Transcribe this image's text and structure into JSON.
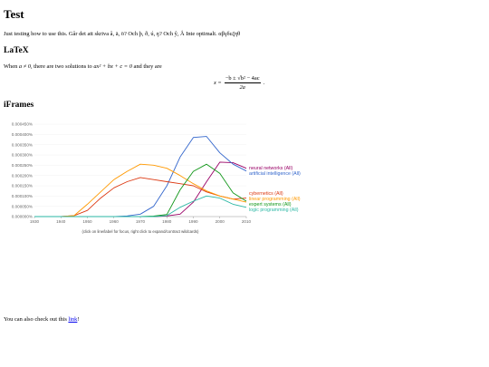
{
  "page": {
    "title": "Test",
    "intro": "Just testing how to use this. Går det att skriva å, ä, ö? Och þ, ð, ú, ŋ? Och ŷ, Å Inte optimalt. αβγδεζηθ",
    "latex_heading": "LaTeX",
    "latex_text": {
      "before": "When ",
      "cond": "a ≠ 0",
      "middle": ", there are two solutions to ",
      "equation": "ax² + bx + c = 0",
      "after": " and they are"
    },
    "display_equation": {
      "lhs": "x =",
      "numerator": "−b ± √b² − 4ac",
      "denominator": "2a",
      "trailing": "."
    },
    "iframes_heading": "iFrames",
    "outro": {
      "before": "You can also check out this ",
      "link": "link",
      "after": "!"
    }
  },
  "chart_data": {
    "type": "line",
    "x": [
      1930,
      1935,
      1940,
      1945,
      1950,
      1955,
      1960,
      1965,
      1970,
      1975,
      1980,
      1985,
      1990,
      1995,
      2000,
      2005,
      2010
    ],
    "xticks": [
      1930,
      1940,
      1950,
      1960,
      1970,
      1980,
      1990,
      2000,
      2010
    ],
    "yticks": [
      "0.000000%",
      "0.000050%",
      "0.000100%",
      "0.000150%",
      "0.000200%",
      "0.000250%",
      "0.000300%",
      "0.000350%",
      "0.000400%",
      "0.000450%"
    ],
    "ylim": [
      0,
      0.00045
    ],
    "xlim": [
      1930,
      2010
    ],
    "caption": "(click on line/label for focus, right click to expand/contract wildcards)",
    "series": [
      {
        "name": "neural networks (All)",
        "color": "#990066",
        "values": [
          0,
          0,
          0,
          0,
          0,
          0,
          0,
          0,
          0,
          0,
          3e-06,
          1.2e-05,
          7e-05,
          0.00017,
          0.000265,
          0.000262,
          0.000235
        ]
      },
      {
        "name": "artificial intelligence (All)",
        "color": "#3366cc",
        "values": [
          0,
          0,
          0,
          0,
          0,
          0,
          0,
          3e-06,
          1.2e-05,
          5e-05,
          0.00015,
          0.00029,
          0.000385,
          0.00039,
          0.00031,
          0.000255,
          0.000222
        ]
      },
      {
        "name": "cybernetics (All)",
        "color": "#dc3912",
        "values": [
          0,
          0,
          0,
          5e-06,
          3e-05,
          9e-05,
          0.00014,
          0.00017,
          0.00019,
          0.00018,
          0.00017,
          0.00016,
          0.00015,
          0.00012,
          0.0001,
          8.5e-05,
          9e-05
        ]
      },
      {
        "name": "linear programming (All)",
        "color": "#ff9900",
        "values": [
          0,
          0,
          0,
          5e-06,
          6e-05,
          0.00012,
          0.00018,
          0.00022,
          0.000255,
          0.00025,
          0.000235,
          0.0002,
          0.00016,
          0.000125,
          0.0001,
          8.5e-05,
          7e-05
        ]
      },
      {
        "name": "expert systems (All)",
        "color": "#109618",
        "values": [
          0,
          0,
          0,
          0,
          0,
          0,
          0,
          0,
          0,
          2e-06,
          1e-05,
          0.00013,
          0.00022,
          0.000255,
          0.00021,
          0.000115,
          7.5e-05
        ]
      },
      {
        "name": "logic programming (All)",
        "color": "#2ab7a4",
        "values": [
          0,
          0,
          0,
          0,
          0,
          0,
          0,
          0,
          0,
          0,
          5e-06,
          4.5e-05,
          7.5e-05,
          0.0001,
          9e-05,
          6e-05,
          4.5e-05
        ]
      }
    ]
  }
}
